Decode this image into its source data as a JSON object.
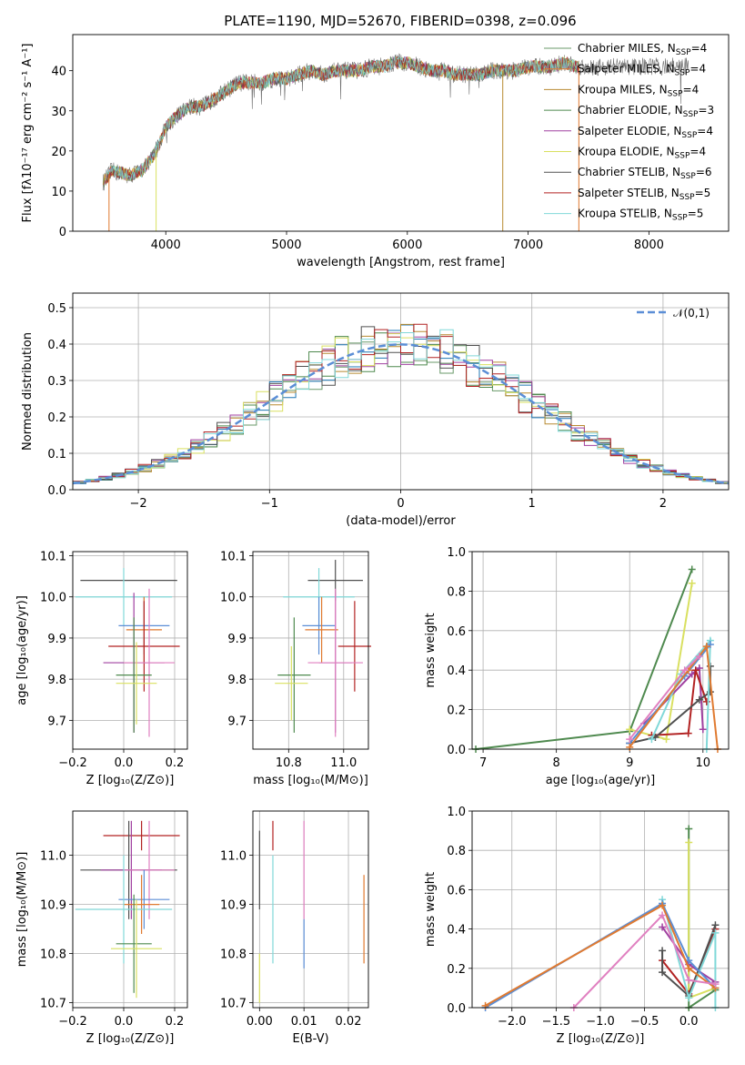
{
  "figure_title": "PLATE=1190, MJD=52670, FIBERID=0398, z=0.096",
  "model_colors": [
    "#6a9a6a",
    "#1f77b4",
    "#b88a30",
    "#4f8a4f",
    "#a040a0",
    "#d9e060",
    "#505050",
    "#b22222",
    "#80d8d8"
  ],
  "chart_data": [
    {
      "id": "spectrum",
      "type": "line",
      "title": "PLATE=1190, MJD=52670, FIBERID=0398, z=0.096",
      "xlabel": "wavelength [Angstrom, rest frame]",
      "ylabel": "Flux [fλ10⁻¹⁷ erg cm⁻² s⁻¹ A⁻¹]",
      "xlim": [
        3230,
        8660
      ],
      "ylim": [
        0,
        49
      ],
      "xticks": [
        "4000",
        "5000",
        "6000",
        "7000",
        "8000"
      ],
      "yticks": [
        "0",
        "10",
        "20",
        "30",
        "40"
      ],
      "grid": false,
      "legend_position": "right",
      "legend": [
        {
          "name": "Chabrier MILES, N_SSP=4",
          "base": "Chabrier MILES, N",
          "sub": "SSP",
          "val": "=4",
          "color": "#6a9a6a"
        },
        {
          "name": "Salpeter MILES, N_SSP=4",
          "base": "Salpeter MILES, N",
          "sub": "SSP",
          "val": "=4",
          "color": "#e07a30"
        },
        {
          "name": "Kroupa MILES, N_SSP=4",
          "base": "Kroupa MILES, N",
          "sub": "SSP",
          "val": "=4",
          "color": "#b88a30"
        },
        {
          "name": "Chabrier ELODIE, N_SSP=3",
          "base": "Chabrier ELODIE, N",
          "sub": "SSP",
          "val": "=3",
          "color": "#4f8a4f"
        },
        {
          "name": "Salpeter ELODIE, N_SSP=4",
          "base": "Salpeter ELODIE, N",
          "sub": "SSP",
          "val": "=4",
          "color": "#a040a0"
        },
        {
          "name": "Kroupa ELODIE, N_SSP=4",
          "base": "Kroupa ELODIE, N",
          "sub": "SSP",
          "val": "=4",
          "color": "#d9e060"
        },
        {
          "name": "Chabrier STELIB, N_SSP=6",
          "base": "Chabrier STELIB, N",
          "sub": "SSP",
          "val": "=6",
          "color": "#505050"
        },
        {
          "name": "Salpeter STELIB, N_SSP=5",
          "base": "Salpeter STELIB, N",
          "sub": "SSP",
          "val": "=5",
          "color": "#b22222"
        },
        {
          "name": "Kroupa STELIB, N_SSP=5",
          "base": "Kroupa STELIB, N",
          "sub": "SSP",
          "val": "=5",
          "color": "#80d8d8"
        }
      ],
      "continuum": [
        [
          3480,
          12
        ],
        [
          3550,
          15
        ],
        [
          3700,
          14
        ],
        [
          3800,
          15
        ],
        [
          3900,
          19
        ],
        [
          3950,
          22
        ],
        [
          4000,
          26
        ],
        [
          4100,
          29
        ],
        [
          4200,
          31
        ],
        [
          4300,
          31
        ],
        [
          4400,
          33
        ],
        [
          4500,
          35
        ],
        [
          4600,
          37
        ],
        [
          4700,
          37
        ],
        [
          4800,
          37
        ],
        [
          4900,
          38
        ],
        [
          5000,
          38
        ],
        [
          5100,
          39
        ],
        [
          5200,
          40
        ],
        [
          5300,
          39
        ],
        [
          5400,
          40
        ],
        [
          5500,
          40
        ],
        [
          5600,
          40
        ],
        [
          5700,
          41
        ],
        [
          5800,
          41
        ],
        [
          5900,
          42
        ],
        [
          6000,
          42
        ],
        [
          6100,
          41
        ],
        [
          6200,
          40
        ],
        [
          6300,
          40
        ],
        [
          6400,
          39
        ],
        [
          6500,
          39
        ],
        [
          6600,
          39
        ],
        [
          6700,
          40
        ],
        [
          6800,
          40
        ],
        [
          6900,
          40
        ],
        [
          7000,
          41
        ],
        [
          7100,
          41
        ],
        [
          7200,
          41
        ],
        [
          7300,
          42
        ],
        [
          7400,
          41
        ]
      ],
      "observed_end": 8330,
      "dropouts": [
        [
          3530,
          0
        ],
        [
          3920,
          0
        ],
        [
          6790,
          0
        ],
        [
          7420,
          0
        ]
      ]
    },
    {
      "id": "residuals",
      "type": "line",
      "xlabel": "(data-model)/error",
      "ylabel": "Normed distribution",
      "xlim": [
        -2.5,
        2.5
      ],
      "ylim": [
        0,
        0.54
      ],
      "xticks": [
        -2,
        -1,
        0,
        1,
        2
      ],
      "yticks": [
        0.0,
        0.1,
        0.2,
        0.3,
        0.4,
        0.5
      ],
      "grid": true,
      "legend_position": "top-right",
      "gaussian_label": "𝒩(0,1)",
      "gaussian_color": "#5b8ed6"
    },
    {
      "id": "age_vs_Z",
      "type": "scatter",
      "xlabel": "Z [log₁₀(Z/Z⊙)]",
      "ylabel": "age  [log₁₀(age/yr)]",
      "xlim": [
        -0.2,
        0.25
      ],
      "ylim": [
        9.63,
        10.11
      ],
      "xticks": [
        "−0.2",
        "0.0",
        "0.2"
      ],
      "xtick_vals": [
        -0.2,
        0.0,
        0.2
      ],
      "yticks": [
        "9.7",
        "9.8",
        "9.9",
        "10.0",
        "10.1"
      ],
      "ytick_vals": [
        9.7,
        9.8,
        9.9,
        10.0,
        10.1
      ],
      "grid": true,
      "points": [
        {
          "x": 0.02,
          "y": 10.04,
          "xerr": 0.19,
          "yerr": 0.0,
          "color": "#505050"
        },
        {
          "x": 0.0,
          "y": 10.0,
          "xerr": 0.19,
          "yerr": 0.07,
          "color": "#80d8d8"
        },
        {
          "x": 0.08,
          "y": 9.93,
          "xerr": 0.1,
          "yerr": 0.07,
          "color": "#5b8ed6"
        },
        {
          "x": 0.08,
          "y": 9.92,
          "xerr": 0.07,
          "yerr": 0.08,
          "color": "#e07a30"
        },
        {
          "x": 0.08,
          "y": 9.88,
          "xerr": 0.14,
          "yerr": 0.11,
          "color": "#b22222"
        },
        {
          "x": 0.04,
          "y": 9.84,
          "xerr": 0.12,
          "yerr": 0.17,
          "color": "#a040a0"
        },
        {
          "x": 0.1,
          "y": 9.84,
          "xerr": 0.1,
          "yerr": 0.18,
          "color": "#e080c0"
        },
        {
          "x": 0.04,
          "y": 9.81,
          "xerr": 0.07,
          "yerr": 0.14,
          "color": "#4f8a4f"
        },
        {
          "x": 0.05,
          "y": 9.79,
          "xerr": 0.08,
          "yerr": 0.1,
          "color": "#d9e060"
        }
      ]
    },
    {
      "id": "age_vs_mass",
      "type": "scatter",
      "xlabel": "mass [log₁₀(M/M⊙)]",
      "ylabel": "",
      "xlim": [
        10.67,
        11.09
      ],
      "ylim": [
        9.63,
        10.11
      ],
      "xticks": [
        "10.8",
        "11.0"
      ],
      "xtick_vals": [
        10.8,
        11.0
      ],
      "yticks": [
        "9.7",
        "9.8",
        "9.9",
        "10.0",
        "10.1"
      ],
      "ytick_vals": [
        9.7,
        9.8,
        9.9,
        10.0,
        10.1
      ],
      "grid": true,
      "points": [
        {
          "x": 10.97,
          "y": 10.04,
          "xerr": 0.1,
          "yerr": 0.05,
          "color": "#505050"
        },
        {
          "x": 10.91,
          "y": 10.0,
          "xerr": 0.13,
          "yerr": 0.07,
          "color": "#80d8d8"
        },
        {
          "x": 10.91,
          "y": 9.93,
          "xerr": 0.06,
          "yerr": 0.07,
          "color": "#5b8ed6"
        },
        {
          "x": 10.92,
          "y": 9.92,
          "xerr": 0.06,
          "yerr": 0.08,
          "color": "#e07a30"
        },
        {
          "x": 11.04,
          "y": 9.88,
          "xerr": 0.06,
          "yerr": 0.11,
          "color": "#b22222"
        },
        {
          "x": 10.97,
          "y": 9.84,
          "xerr": 0.06,
          "yerr": 0.17,
          "color": "#a040a0"
        },
        {
          "x": 10.97,
          "y": 9.84,
          "xerr": 0.1,
          "yerr": 0.18,
          "color": "#e080c0"
        },
        {
          "x": 10.82,
          "y": 9.81,
          "xerr": 0.06,
          "yerr": 0.14,
          "color": "#4f8a4f"
        },
        {
          "x": 10.81,
          "y": 9.79,
          "xerr": 0.06,
          "yerr": 0.09,
          "color": "#d9e060"
        }
      ]
    },
    {
      "id": "weight_vs_age",
      "type": "line",
      "xlabel": "age  [log₁₀(age/yr)]",
      "ylabel": "mass weight",
      "xlim": [
        6.85,
        10.35
      ],
      "ylim": [
        0,
        1.0
      ],
      "xticks": [
        "7",
        "8",
        "9",
        "10"
      ],
      "xtick_vals": [
        7,
        8,
        9,
        10
      ],
      "yticks": [
        "0.0",
        "0.2",
        "0.4",
        "0.6",
        "0.8",
        "1.0"
      ],
      "ytick_vals": [
        0,
        0.2,
        0.4,
        0.6,
        0.8,
        1.0
      ],
      "grid": true,
      "series": [
        {
          "color": "#4f8a4f",
          "points": [
            [
              6.9,
              0.0
            ],
            [
              9.0,
              0.09
            ],
            [
              9.85,
              0.91
            ]
          ]
        },
        {
          "color": "#d9e060",
          "points": [
            [
              9.0,
              0.1
            ],
            [
              9.5,
              0.05
            ],
            [
              9.85,
              0.84
            ]
          ]
        },
        {
          "color": "#a040a0",
          "points": [
            [
              9.2,
              0.13
            ],
            [
              9.85,
              0.38
            ],
            [
              9.95,
              0.41
            ],
            [
              10.0,
              0.1
            ]
          ]
        },
        {
          "color": "#b22222",
          "points": [
            [
              9.3,
              0.07
            ],
            [
              9.8,
              0.08
            ],
            [
              9.9,
              0.4
            ],
            [
              10.05,
              0.24
            ]
          ]
        },
        {
          "color": "#505050",
          "points": [
            [
              9.0,
              0.03
            ],
            [
              9.35,
              0.06
            ],
            [
              9.95,
              0.25
            ],
            [
              10.1,
              0.29
            ],
            [
              10.1,
              0.42
            ]
          ]
        },
        {
          "color": "#80d8d8",
          "points": [
            [
              9.3,
              0.05
            ],
            [
              9.7,
              0.38
            ],
            [
              10.1,
              0.55
            ],
            [
              10.05,
              0.0
            ]
          ]
        },
        {
          "color": "#5b8ed6",
          "points": [
            [
              9.0,
              0.03
            ],
            [
              9.75,
              0.37
            ],
            [
              10.1,
              0.53
            ]
          ]
        },
        {
          "color": "#e07a30",
          "points": [
            [
              9.0,
              0.01
            ],
            [
              9.8,
              0.4
            ],
            [
              10.05,
              0.52
            ],
            [
              10.2,
              0.0
            ]
          ]
        },
        {
          "color": "#e080c0",
          "points": [
            [
              9.0,
              0.05
            ],
            [
              9.75,
              0.4
            ],
            [
              9.95,
              0.47
            ]
          ]
        }
      ]
    },
    {
      "id": "mass_vs_Z",
      "type": "scatter",
      "xlabel": "Z [log₁₀(Z/Z⊙)]",
      "ylabel": "mass [log₁₀(M/M⊙)]",
      "xlim": [
        -0.2,
        0.25
      ],
      "ylim": [
        10.69,
        11.09
      ],
      "xticks": [
        "−0.2",
        "0.0",
        "0.2"
      ],
      "xtick_vals": [
        -0.2,
        0.0,
        0.2
      ],
      "yticks": [
        "10.7",
        "10.8",
        "10.9",
        "11.0"
      ],
      "ytick_vals": [
        10.7,
        10.8,
        10.9,
        11.0
      ],
      "grid": true,
      "points": [
        {
          "x": 0.07,
          "y": 11.04,
          "xerr": 0.15,
          "yerr": 0.03,
          "color": "#b22222"
        },
        {
          "x": 0.02,
          "y": 10.97,
          "xerr": 0.19,
          "yerr": 0.1,
          "color": "#505050"
        },
        {
          "x": 0.03,
          "y": 10.97,
          "xerr": 0.12,
          "yerr": 0.1,
          "color": "#a040a0"
        },
        {
          "x": 0.1,
          "y": 10.97,
          "xerr": 0.1,
          "yerr": 0.1,
          "color": "#e080c0"
        },
        {
          "x": 0.08,
          "y": 10.91,
          "xerr": 0.1,
          "yerr": 0.06,
          "color": "#5b8ed6"
        },
        {
          "x": 0.07,
          "y": 10.9,
          "xerr": 0.07,
          "yerr": 0.06,
          "color": "#e07a30"
        },
        {
          "x": 0.0,
          "y": 10.89,
          "xerr": 0.19,
          "yerr": 0.11,
          "color": "#80d8d8"
        },
        {
          "x": 0.04,
          "y": 10.82,
          "xerr": 0.07,
          "yerr": 0.1,
          "color": "#4f8a4f"
        },
        {
          "x": 0.05,
          "y": 10.81,
          "xerr": 0.1,
          "yerr": 0.1,
          "color": "#d9e060"
        }
      ]
    },
    {
      "id": "mass_vs_ebv",
      "type": "scatter",
      "xlabel": "E(B-V)",
      "ylabel": "",
      "xlim": [
        -0.0015,
        0.0245
      ],
      "ylim": [
        10.69,
        11.09
      ],
      "xticks": [
        "0.00",
        "0.01",
        "0.02"
      ],
      "xtick_vals": [
        0.0,
        0.01,
        0.02
      ],
      "yticks": [
        "10.7",
        "10.8",
        "10.9",
        "11.0"
      ],
      "ytick_vals": [
        10.7,
        10.8,
        10.9,
        11.0
      ],
      "grid": true,
      "points": [
        {
          "x": 0.0,
          "y": 10.97,
          "xerr": 0,
          "yerr": 0.08,
          "color": "#505050"
        },
        {
          "x": 0.0,
          "y": 10.75,
          "xerr": 0,
          "yerr": 0.05,
          "color": "#d9e060"
        },
        {
          "x": 0.003,
          "y": 11.04,
          "xerr": 0,
          "yerr": 0.03,
          "color": "#b22222"
        },
        {
          "x": 0.003,
          "y": 10.89,
          "xerr": 0,
          "yerr": 0.11,
          "color": "#80d8d8"
        },
        {
          "x": 0.01,
          "y": 10.97,
          "xerr": 0,
          "yerr": 0.1,
          "color": "#e080c0"
        },
        {
          "x": 0.01,
          "y": 10.82,
          "xerr": 0,
          "yerr": 0.05,
          "color": "#5b8ed6"
        },
        {
          "x": 0.0235,
          "y": 10.87,
          "xerr": 0,
          "yerr": 0.09,
          "color": "#e07a30"
        }
      ]
    },
    {
      "id": "weight_vs_Z",
      "type": "line",
      "xlabel": "Z [log₁₀(Z/Z⊙)]",
      "ylabel": "mass weight",
      "xlim": [
        -2.45,
        0.45
      ],
      "ylim": [
        0,
        1.0
      ],
      "xticks": [
        "−2.0",
        "−1.5",
        "−1.0",
        "−0.5",
        "0.0"
      ],
      "xtick_vals": [
        -2.0,
        -1.5,
        -1.0,
        -0.5,
        0.0
      ],
      "yticks": [
        "0.0",
        "0.2",
        "0.4",
        "0.6",
        "0.8",
        "1.0"
      ],
      "ytick_vals": [
        0,
        0.2,
        0.4,
        0.6,
        0.8,
        1.0
      ],
      "grid": true,
      "series": [
        {
          "color": "#4f8a4f",
          "points": [
            [
              0.0,
              0.91
            ],
            [
              0.0,
              0.0
            ],
            [
              0.3,
              0.09
            ]
          ]
        },
        {
          "color": "#d9e060",
          "points": [
            [
              0.0,
              0.84
            ],
            [
              0.0,
              0.05
            ],
            [
              0.3,
              0.1
            ]
          ]
        },
        {
          "color": "#a040a0",
          "points": [
            [
              -0.3,
              0.41
            ],
            [
              0.0,
              0.22
            ],
            [
              0.3,
              0.13
            ]
          ]
        },
        {
          "color": "#b22222",
          "points": [
            [
              -0.3,
              0.24
            ],
            [
              0.0,
              0.07
            ],
            [
              0.3,
              0.4
            ]
          ]
        },
        {
          "color": "#505050",
          "points": [
            [
              -0.3,
              0.29
            ],
            [
              -0.3,
              0.18
            ],
            [
              0.0,
              0.06
            ],
            [
              0.3,
              0.42
            ]
          ]
        },
        {
          "color": "#80d8d8",
          "points": [
            [
              -0.3,
              0.55
            ],
            [
              0.0,
              0.05
            ],
            [
              0.3,
              0.38
            ],
            [
              0.3,
              0.0
            ]
          ]
        },
        {
          "color": "#5b8ed6",
          "points": [
            [
              -2.3,
              0.0
            ],
            [
              -0.3,
              0.53
            ],
            [
              0.0,
              0.24
            ],
            [
              0.3,
              0.1
            ]
          ]
        },
        {
          "color": "#e07a30",
          "points": [
            [
              -2.3,
              0.01
            ],
            [
              -0.3,
              0.52
            ],
            [
              0.0,
              0.2
            ],
            [
              0.3,
              0.1
            ]
          ]
        },
        {
          "color": "#e080c0",
          "points": [
            [
              -1.3,
              0.0
            ],
            [
              -0.3,
              0.47
            ],
            [
              0.0,
              0.14
            ],
            [
              0.3,
              0.12
            ]
          ]
        }
      ]
    }
  ]
}
